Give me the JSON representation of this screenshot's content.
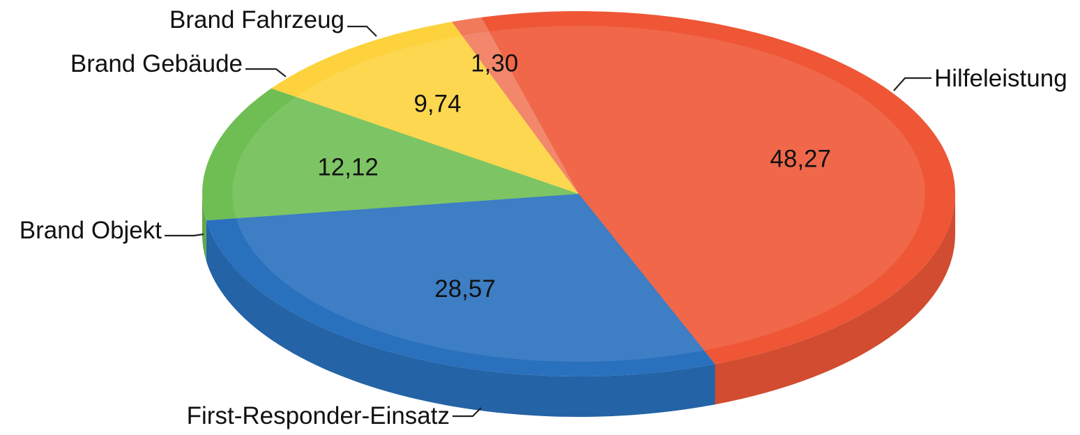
{
  "chart_data": {
    "type": "pie",
    "title": "",
    "three_d": true,
    "start_angle_deg": -105,
    "direction": "clockwise",
    "slices": [
      {
        "label": "Hilfeleistung",
        "value": 48.27,
        "value_text": "48,27",
        "color": "#ee5636"
      },
      {
        "label": "First-Responder-Einsatz",
        "value": 28.57,
        "value_text": "28,57",
        "color": "#2970bd"
      },
      {
        "label": "Brand Objekt",
        "value": 12.12,
        "value_text": "12,12",
        "color": "#6fbe53"
      },
      {
        "label": "Brand Gebäude",
        "value": 9.74,
        "value_text": "9,74",
        "color": "#fdd23c"
      },
      {
        "label": "Brand Fahrzeug",
        "value": 1.3,
        "value_text": "1,30",
        "color": "#f07a5a"
      }
    ]
  }
}
